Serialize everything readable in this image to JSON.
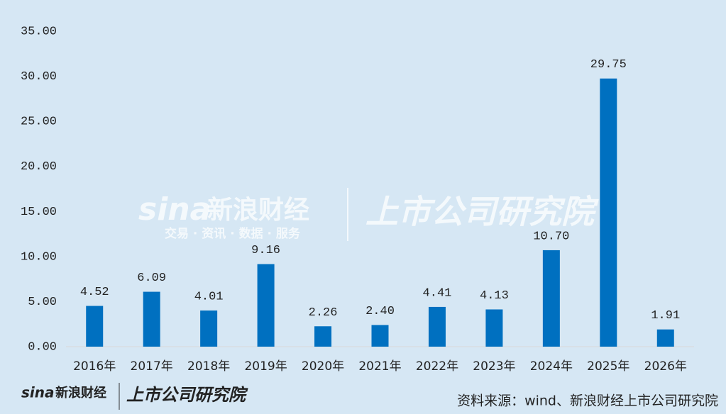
{
  "chart_data": {
    "type": "bar",
    "categories": [
      "2016年",
      "2017年",
      "2018年",
      "2019年",
      "2020年",
      "2021年",
      "2022年",
      "2023年",
      "2024年",
      "2025年",
      "2026年"
    ],
    "values": [
      4.52,
      6.09,
      4.01,
      9.16,
      2.26,
      2.4,
      4.41,
      4.13,
      10.7,
      29.75,
      1.91
    ],
    "value_labels": [
      "4.52",
      "6.09",
      "4.01",
      "9.16",
      "2.26",
      "2.40",
      "4.41",
      "4.13",
      "10.70",
      "29.75",
      "1.91"
    ],
    "color": "#0070c0",
    "ylim": [
      0,
      35
    ],
    "yticks": [
      {
        "value": 0,
        "label": "0.00"
      },
      {
        "value": 5,
        "label": "5.00"
      },
      {
        "value": 10,
        "label": "10.00"
      },
      {
        "value": 15,
        "label": "15.00"
      },
      {
        "value": 20,
        "label": "20.00"
      },
      {
        "value": 25,
        "label": "25.00"
      },
      {
        "value": 30,
        "label": "30.00"
      },
      {
        "value": 35,
        "label": "35.00"
      }
    ],
    "grid": false,
    "watermark": {
      "brand": "sina",
      "name": "新浪财经",
      "tagline": "交易 · 资讯 · 数据 · 服务",
      "institute": "上市公司研究院"
    },
    "source": "资料来源：wind、新浪财经上市公司研究院"
  }
}
